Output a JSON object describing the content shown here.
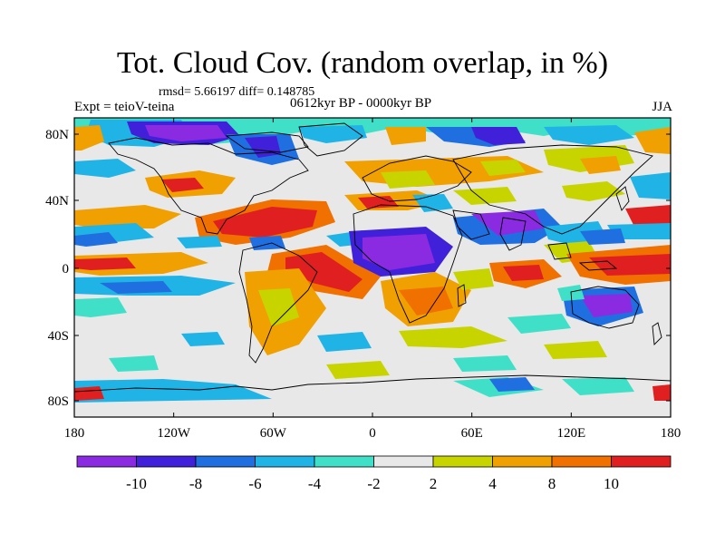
{
  "header": {
    "title": "Tot. Cloud Cov. (random overlap, in %)",
    "stats": "rmsd= 5.66197 diff= 0.148785",
    "experiment": "Expt = teioV-teina",
    "period": "0612kyr BP - 0000kyr BP",
    "season": "JJA"
  },
  "axes": {
    "lat_ticks": [
      "80N",
      "40N",
      "0",
      "40S",
      "80S"
    ],
    "lon_ticks": [
      "180",
      "120W",
      "60W",
      "0",
      "60E",
      "120E",
      "180"
    ]
  },
  "colorbar": {
    "labels": [
      "-10",
      "-8",
      "-6",
      "-4",
      "-2",
      "2",
      "4",
      "8",
      "10"
    ],
    "colors": [
      "#8a2be2",
      "#4020d8",
      "#1f6fe0",
      "#20b4e6",
      "#40e0c8",
      "#e8e8e8",
      "#c8d400",
      "#f0a000",
      "#f07000",
      "#e02020"
    ]
  }
}
